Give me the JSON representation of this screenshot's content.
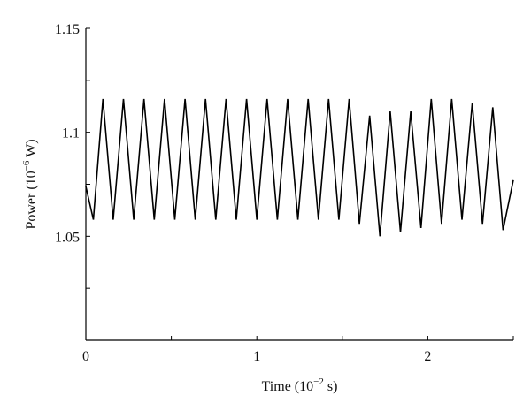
{
  "chart_data": {
    "type": "line",
    "title": "",
    "xlabel": {
      "prefix": "Time (10",
      "exp": "−2",
      "suffix": " s)"
    },
    "ylabel": {
      "prefix": "Power (10",
      "exp": "−6",
      "suffix": " W)"
    },
    "xlim": [
      0,
      2.5
    ],
    "ylim": [
      1.0,
      1.15
    ],
    "xticks": [
      0,
      0.5,
      1,
      1.5,
      2,
      2.5
    ],
    "xtick_labels": [
      "0",
      "",
      "1",
      "",
      "2",
      ""
    ],
    "yticks": [
      1.0,
      1.025,
      1.05,
      1.075,
      1.1,
      1.125,
      1.15
    ],
    "ytick_labels": [
      "",
      "",
      "1.05",
      "",
      "1.1",
      "",
      "1.15"
    ],
    "grid": false,
    "series": [
      {
        "color": "#000000",
        "x": [
          0.0,
          0.044,
          0.1,
          0.16,
          0.22,
          0.28,
          0.34,
          0.4,
          0.46,
          0.52,
          0.58,
          0.64,
          0.7,
          0.76,
          0.82,
          0.88,
          0.94,
          1.0,
          1.06,
          1.12,
          1.18,
          1.24,
          1.3,
          1.36,
          1.42,
          1.48,
          1.54,
          1.6,
          1.66,
          1.72,
          1.78,
          1.84,
          1.9,
          1.96,
          2.02,
          2.08,
          2.14,
          2.2,
          2.26,
          2.32,
          2.38,
          2.44,
          2.5
        ],
        "y": [
          1.074,
          1.058,
          1.116,
          1.058,
          1.116,
          1.058,
          1.116,
          1.058,
          1.116,
          1.058,
          1.116,
          1.058,
          1.116,
          1.058,
          1.116,
          1.058,
          1.116,
          1.058,
          1.116,
          1.058,
          1.116,
          1.058,
          1.116,
          1.058,
          1.116,
          1.058,
          1.116,
          1.056,
          1.108,
          1.05,
          1.11,
          1.052,
          1.11,
          1.054,
          1.116,
          1.056,
          1.116,
          1.058,
          1.114,
          1.056,
          1.112,
          1.053,
          1.077
        ]
      }
    ]
  }
}
